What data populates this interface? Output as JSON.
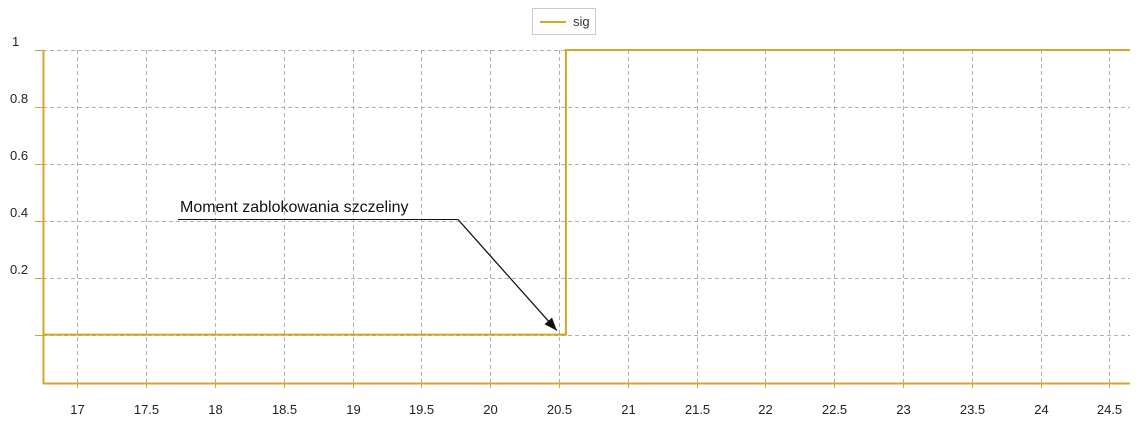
{
  "chart_data": {
    "type": "line",
    "step": true,
    "x_ticks": [
      17,
      17.5,
      18,
      18.5,
      19,
      19.5,
      20,
      20.5,
      21,
      21.5,
      22,
      22.5,
      23,
      23.5,
      24,
      24.5
    ],
    "x_tick_labels": [
      "17",
      "17.5",
      "18",
      "18.5",
      "19",
      "19.5",
      "20",
      "20.5",
      "21",
      "21.5",
      "22",
      "22.5",
      "23",
      "23.5",
      "24",
      "24.5"
    ],
    "y_ticks": [
      0.2,
      0.4,
      0.6,
      0.8,
      1
    ],
    "y_tick_labels": [
      "0.2",
      "0.4",
      "0.6",
      "0.8",
      "1"
    ],
    "xlim": [
      16.75,
      24.65
    ],
    "ylim": [
      -0.17,
      1.0
    ],
    "grid": true,
    "legend_placement": "top-center",
    "series": [
      {
        "name": "sig",
        "color": "#d4a52c",
        "x": [
          16.75,
          20.55,
          20.55,
          24.65
        ],
        "y": [
          0,
          0,
          1,
          1
        ]
      }
    ],
    "annotation": {
      "text": "Moment zablokowania szczeliny",
      "target_x": 20.55,
      "target_y": 0
    }
  },
  "colors": {
    "axis": "#d4a52c",
    "grid": "#b0b0b0",
    "series": "#d4a52c",
    "arrow": "#111111"
  }
}
